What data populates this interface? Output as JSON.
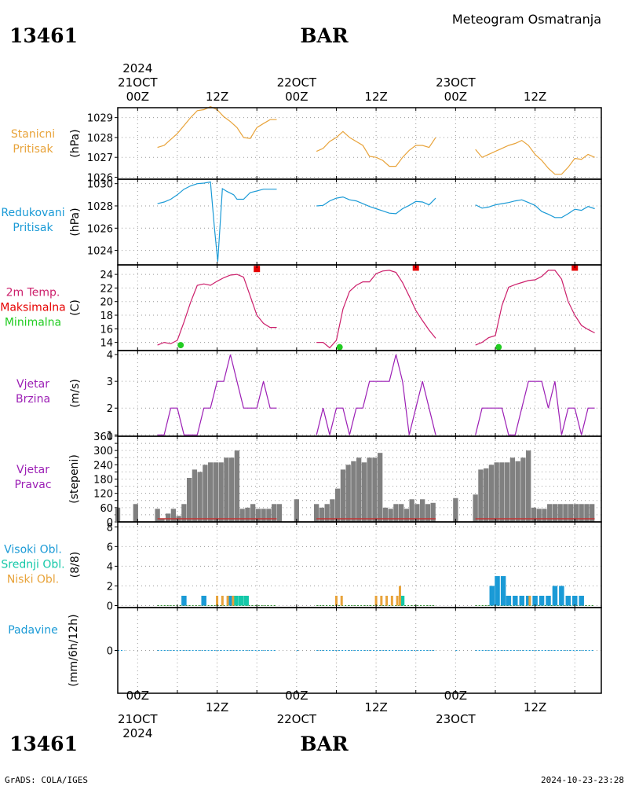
{
  "header": {
    "station_id": "13461",
    "station_name": "BAR",
    "product_title": "Meteogram Osmatranja"
  },
  "footer": {
    "credit": "GrADS: COLA/IGES",
    "generated": "2024-10-23-23:28"
  },
  "time_axis": {
    "top_year": "2024",
    "bottom_year": "2024",
    "days": [
      {
        "hour": 0,
        "date_label": "21OCT",
        "hour_label": "00Z"
      },
      {
        "hour": 24,
        "date_label": "22OCT",
        "hour_label": "00Z"
      },
      {
        "hour": 48,
        "date_label": "23OCT",
        "hour_label": "00Z"
      }
    ],
    "noons": [
      {
        "hour": 12,
        "hour_label": "12Z"
      },
      {
        "hour": 36,
        "hour_label": "12Z"
      },
      {
        "hour": 60,
        "hour_label": "12Z"
      }
    ],
    "range_hours": [
      -3,
      70
    ]
  },
  "colors": {
    "pressure": "#e8a33a",
    "reduced": "#1a9ad6",
    "temp": "#cc1f6b",
    "tmax": "#e60000",
    "tmin": "#22cc22",
    "wind": "#9c1fb5",
    "bars": "#808080",
    "dir_base": "#c33333",
    "cloud_high": "#1a9ad6",
    "cloud_mid": "#14c8a8",
    "cloud_low": "#e8a33a",
    "precip": "#1a9ad6"
  },
  "chart_data": [
    {
      "type": "line",
      "panel": "stanicni_pritisak",
      "left_label": [
        "Stanicni",
        "Pritisak"
      ],
      "ylabel": "(hPa)",
      "ylim": [
        1025.9,
        1029.5
      ],
      "yticks": [
        1026,
        1027,
        1028,
        1029
      ],
      "series": [
        {
          "segment": 1,
          "x": [
            3,
            4,
            5,
            6,
            7,
            8,
            9,
            10,
            11,
            12,
            13,
            14,
            15,
            16,
            17,
            18,
            19,
            20,
            21
          ],
          "y": [
            1027.5,
            1027.6,
            1027.9,
            1028.2,
            1028.6,
            1029.0,
            1029.35,
            1029.4,
            1029.55,
            1029.4,
            1029.05,
            1028.8,
            1028.5,
            1028.0,
            1027.95,
            1028.5,
            1028.7,
            1028.9,
            1028.9
          ]
        },
        {
          "segment": 2,
          "x": [
            27,
            28,
            29,
            30,
            31,
            32,
            33,
            34,
            35,
            36,
            37,
            38,
            39,
            40,
            41,
            42,
            43,
            44,
            45
          ],
          "y": [
            1027.3,
            1027.45,
            1027.8,
            1028.0,
            1028.3,
            1028.0,
            1027.8,
            1027.6,
            1027.05,
            1027.0,
            1026.85,
            1026.55,
            1026.55,
            1027.0,
            1027.35,
            1027.6,
            1027.6,
            1027.5,
            1028.0
          ]
        },
        {
          "segment": 3,
          "x": [
            51,
            52,
            53,
            54,
            55,
            56,
            57,
            58,
            59,
            60,
            61,
            62,
            63,
            64,
            65,
            66,
            67,
            68,
            69
          ],
          "y": [
            1027.4,
            1027.0,
            1027.15,
            1027.3,
            1027.45,
            1027.6,
            1027.7,
            1027.85,
            1027.6,
            1027.15,
            1026.85,
            1026.45,
            1026.15,
            1026.15,
            1026.5,
            1026.95,
            1026.9,
            1027.15,
            1027.0
          ]
        }
      ]
    },
    {
      "type": "line",
      "panel": "redukovani_pritisak",
      "left_label": [
        "Redukovani",
        "Pritisak"
      ],
      "ylabel": "(hPa)",
      "ylim": [
        1022.7,
        1030.4
      ],
      "yticks": [
        1024,
        1026,
        1028,
        1030
      ],
      "series": [
        {
          "segment": 1,
          "x": [
            3,
            4,
            5,
            6,
            7,
            8,
            9,
            10,
            11,
            11.6,
            12.1,
            12.8,
            13.5,
            14.5,
            15,
            16,
            17,
            18,
            19,
            20,
            21
          ],
          "y": [
            1028.2,
            1028.35,
            1028.6,
            1029.0,
            1029.5,
            1029.8,
            1030.0,
            1030.05,
            1030.15,
            1026.0,
            1023.0,
            1029.55,
            1029.3,
            1029.0,
            1028.6,
            1028.6,
            1029.2,
            1029.35,
            1029.5,
            1029.5,
            1029.5
          ]
        },
        {
          "segment": 2,
          "x": [
            27,
            28,
            29,
            30,
            31,
            32,
            33,
            34,
            35,
            36,
            37,
            38,
            39,
            40,
            41,
            42,
            43,
            44,
            45
          ],
          "y": [
            1028.0,
            1028.05,
            1028.45,
            1028.7,
            1028.8,
            1028.55,
            1028.45,
            1028.2,
            1027.95,
            1027.75,
            1027.55,
            1027.35,
            1027.3,
            1027.75,
            1028.05,
            1028.4,
            1028.35,
            1028.1,
            1028.7
          ]
        },
        {
          "segment": 3,
          "x": [
            51,
            52,
            53,
            54,
            55,
            56,
            57,
            58,
            59,
            60,
            61,
            62,
            63,
            64,
            65,
            66,
            67,
            68,
            69
          ],
          "y": [
            1028.1,
            1027.8,
            1027.9,
            1028.1,
            1028.2,
            1028.3,
            1028.45,
            1028.55,
            1028.3,
            1028.05,
            1027.5,
            1027.25,
            1026.95,
            1026.95,
            1027.3,
            1027.7,
            1027.6,
            1027.95,
            1027.75
          ]
        }
      ]
    },
    {
      "type": "line",
      "panel": "temperatura",
      "left_label": [
        "2m Temp.",
        "Maksimalna",
        "Minimalna"
      ],
      "ylabel": "(C)",
      "ylim": [
        12.8,
        25.4
      ],
      "yticks": [
        14,
        16,
        18,
        20,
        22,
        24
      ],
      "series": [
        {
          "segment": 1,
          "x": [
            3,
            4,
            5,
            6,
            7,
            8,
            9,
            10,
            11,
            12,
            13,
            14,
            15,
            16,
            17,
            18,
            19,
            20,
            21
          ],
          "y": [
            13.6,
            14.0,
            13.8,
            14.3,
            17.0,
            19.9,
            22.4,
            22.6,
            22.4,
            23.0,
            23.5,
            23.9,
            24.0,
            23.6,
            20.8,
            18.0,
            16.8,
            16.2,
            16.2
          ]
        },
        {
          "segment": 2,
          "x": [
            27,
            28,
            29,
            30,
            31,
            32,
            33,
            34,
            35,
            36,
            37,
            38,
            39,
            40,
            41,
            42,
            43,
            44,
            45
          ],
          "y": [
            14.0,
            14.0,
            13.2,
            14.3,
            18.9,
            21.5,
            22.4,
            22.9,
            22.9,
            24.1,
            24.5,
            24.6,
            24.3,
            22.8,
            20.8,
            18.7,
            17.2,
            15.8,
            14.6
          ]
        },
        {
          "segment": 3,
          "x": [
            51,
            52,
            53,
            54,
            55,
            56,
            57,
            58,
            59,
            60,
            61,
            62,
            63,
            64,
            65,
            66,
            67,
            68,
            69
          ],
          "y": [
            13.6,
            14.0,
            14.7,
            15.0,
            19.4,
            22.1,
            22.5,
            22.8,
            23.1,
            23.2,
            23.7,
            24.6,
            24.6,
            23.3,
            20.0,
            18.0,
            16.5,
            15.9,
            15.4
          ]
        }
      ],
      "maxima": {
        "x": [
          18,
          42,
          66
        ],
        "y": [
          24.8,
          25.0,
          25.0
        ]
      },
      "minima": {
        "x": [
          6.5,
          30.5,
          54.5
        ],
        "y": [
          13.6,
          13.3,
          13.3
        ]
      }
    },
    {
      "type": "line",
      "panel": "vjetar_brzina",
      "left_label": [
        "Vjetar",
        "Brzina"
      ],
      "ylabel": "(m/s)",
      "ylim": [
        0.95,
        4.15
      ],
      "yticks": [
        1,
        2,
        3,
        4
      ],
      "series": [
        {
          "segment": 1,
          "x": [
            3,
            4,
            5,
            6,
            7,
            8,
            9,
            10,
            11,
            12,
            13,
            14,
            15,
            16,
            17,
            18,
            19,
            20,
            21
          ],
          "y": [
            1,
            1,
            2,
            2,
            1,
            1,
            1,
            2,
            2,
            3,
            3,
            4,
            3,
            2,
            2,
            2,
            3,
            2,
            2
          ]
        },
        {
          "segment": 2,
          "x": [
            27,
            28,
            29,
            30,
            31,
            32,
            33,
            34,
            35,
            36,
            37,
            38,
            39,
            40,
            41,
            42,
            43,
            44,
            45
          ],
          "y": [
            1,
            2,
            1,
            2,
            2,
            1,
            2,
            2,
            3,
            3,
            3,
            3,
            4,
            3,
            1,
            2,
            3,
            2,
            1
          ]
        },
        {
          "segment": 3,
          "x": [
            51,
            52,
            53,
            54,
            55,
            56,
            57,
            58,
            59,
            60,
            61,
            62,
            63,
            64,
            65,
            66,
            67,
            68,
            69
          ],
          "y": [
            1,
            2,
            2,
            2,
            2,
            1,
            1,
            2,
            3,
            3,
            3,
            2,
            3,
            1,
            2,
            2,
            1,
            2,
            2
          ]
        }
      ]
    },
    {
      "type": "bar",
      "panel": "vjetar_pravac",
      "left_label": [
        "Vjetar",
        "Pravac"
      ],
      "ylabel": "(stepeni)",
      "ylim": [
        0,
        360
      ],
      "yticks": [
        0,
        30,
        60,
        90,
        120,
        150,
        180,
        210,
        240,
        270,
        300,
        330,
        360
      ],
      "ytick_labels": [
        0,
        60,
        120,
        180,
        240,
        300,
        360
      ],
      "x": [
        -3,
        -0.3,
        3,
        3.7,
        4.6,
        5.4,
        6.2,
        7,
        7.8,
        8.6,
        9.4,
        10.2,
        11,
        11.8,
        12.6,
        13.4,
        14.2,
        15,
        15.8,
        16.6,
        17.4,
        18.2,
        19,
        19.8,
        20.6,
        21.4,
        24,
        27,
        27.8,
        28.6,
        29.4,
        30.2,
        31,
        31.8,
        32.6,
        33.4,
        34.2,
        35,
        35.8,
        36.6,
        37.4,
        38.2,
        39,
        39.8,
        40.6,
        41.4,
        42.2,
        43,
        43.8,
        44.6,
        48,
        51,
        51.8,
        52.6,
        53.4,
        54.2,
        55,
        55.8,
        56.6,
        57.4,
        58.2,
        59,
        59.8,
        60.6,
        61.4,
        62.2,
        63,
        63.8,
        64.6,
        65.4,
        66.2,
        67,
        67.8,
        68.6
      ],
      "values": [
        60,
        75,
        55,
        15,
        35,
        55,
        25,
        75,
        185,
        220,
        210,
        240,
        250,
        250,
        250,
        270,
        270,
        300,
        55,
        60,
        75,
        55,
        55,
        55,
        75,
        75,
        95,
        75,
        60,
        75,
        95,
        140,
        220,
        240,
        255,
        270,
        250,
        270,
        270,
        290,
        60,
        55,
        75,
        75,
        55,
        95,
        75,
        95,
        75,
        80,
        100,
        115,
        220,
        225,
        240,
        250,
        250,
        250,
        270,
        255,
        270,
        300,
        60,
        55,
        55,
        75,
        75,
        75,
        75,
        75,
        75,
        75,
        75,
        75
      ]
    },
    {
      "type": "bar",
      "panel": "oblacnost",
      "left_label": [
        "Visoki Obl.",
        "Srednji Obl.",
        "Niski Obl."
      ],
      "ylabel": "(8/8)",
      "ylim": [
        -0.2,
        8.5
      ],
      "yticks": [
        0,
        2,
        4,
        6,
        8
      ],
      "series": [
        {
          "name": "Visoki Obl.",
          "x": [
            7,
            10,
            14,
            53.5,
            54.3,
            55.2,
            56,
            57,
            58,
            59,
            60,
            61,
            62,
            63,
            64,
            65,
            66,
            67
          ],
          "values": [
            1,
            1,
            1,
            2,
            3,
            3,
            1,
            1,
            1,
            1,
            1,
            1,
            1,
            2,
            2,
            1,
            1,
            1
          ]
        },
        {
          "name": "Srednji Obl.",
          "x": [
            14.8,
            15.6,
            16.4,
            39.9
          ],
          "values": [
            1,
            1,
            1,
            1
          ]
        },
        {
          "name": "Niski Obl.",
          "x": [
            12,
            12.8,
            13.6,
            14.4,
            30,
            30.8,
            36,
            36.8,
            37.6,
            38.4,
            39.2,
            39.6,
            59.2
          ],
          "values": [
            1,
            1,
            1,
            1,
            1,
            1,
            1,
            1,
            1,
            1,
            1,
            2,
            1
          ]
        }
      ]
    },
    {
      "type": "bar",
      "panel": "padavine",
      "left_label": [
        "Padavine"
      ],
      "ylabel": "(mm/6h/12h)",
      "ylim": [
        -1,
        1
      ],
      "yticks": [
        0
      ],
      "values": [
        0
      ]
    }
  ]
}
